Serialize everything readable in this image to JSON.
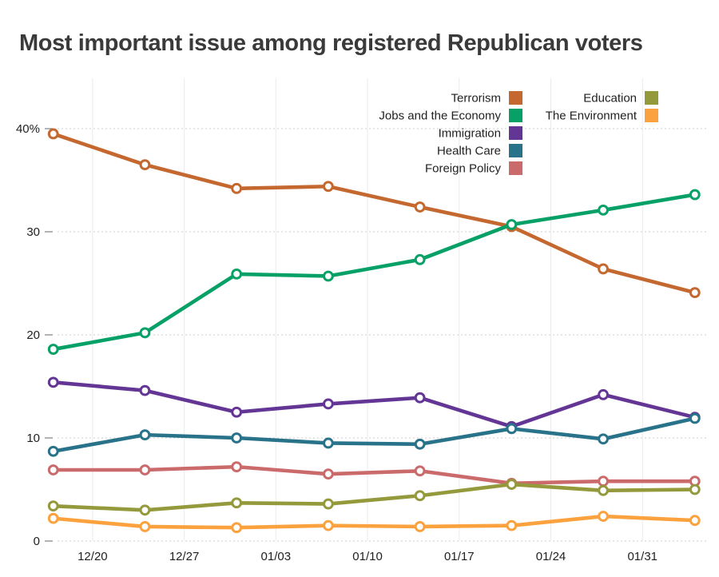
{
  "page": {
    "title": "Most important issue among registered Republican voters"
  },
  "chart_data": {
    "type": "line",
    "title": "Most important issue among registered Republican voters",
    "x_tick_labels": [
      "12/20",
      "12/27",
      "01/03",
      "01/10",
      "01/17",
      "01/24",
      "01/31"
    ],
    "x_tick_days": [
      0,
      7,
      14,
      21,
      28,
      35,
      42
    ],
    "x_days": [
      -3,
      4,
      11,
      18,
      25,
      32,
      39,
      46
    ],
    "y_ticks": [
      0,
      10,
      20,
      30,
      40
    ],
    "y_tick_labels": [
      "0",
      "10",
      "20",
      "30",
      "40%"
    ],
    "ylim": [
      0,
      44
    ],
    "grid": {
      "vertical_lines": true,
      "horizontal_dashed_lines": true
    },
    "legend_position": "top-right, two columns, labels right-aligned before color swatches",
    "series": [
      {
        "name": "Terrorism",
        "color": "#C4682F",
        "legend_col": 0,
        "legend_row": 0,
        "values": [
          39.5,
          36.5,
          34.2,
          34.4,
          32.4,
          30.5,
          26.4,
          24.1
        ]
      },
      {
        "name": "Jobs and the Economy",
        "color": "#07A168",
        "legend_col": 0,
        "legend_row": 1,
        "values": [
          18.6,
          20.2,
          25.9,
          25.7,
          27.3,
          30.7,
          32.1,
          33.6
        ]
      },
      {
        "name": "Immigration",
        "color": "#633594",
        "legend_col": 0,
        "legend_row": 2,
        "values": [
          15.4,
          14.6,
          12.5,
          13.3,
          13.9,
          11.1,
          14.2,
          12.0
        ]
      },
      {
        "name": "Health Care",
        "color": "#28728A",
        "legend_col": 0,
        "legend_row": 3,
        "values": [
          8.7,
          10.3,
          10.0,
          9.5,
          9.4,
          10.9,
          9.9,
          11.9
        ]
      },
      {
        "name": "Foreign Policy",
        "color": "#CB6A6B",
        "legend_col": 0,
        "legend_row": 4,
        "values": [
          6.9,
          6.9,
          7.2,
          6.5,
          6.8,
          5.6,
          5.8,
          5.8
        ]
      },
      {
        "name": "Education",
        "color": "#94993B",
        "legend_col": 1,
        "legend_row": 0,
        "values": [
          3.4,
          3.0,
          3.7,
          3.6,
          4.4,
          5.5,
          4.9,
          5.0
        ]
      },
      {
        "name": "The Environment",
        "color": "#FBA13E",
        "legend_col": 1,
        "legend_row": 1,
        "values": [
          2.2,
          1.4,
          1.3,
          1.5,
          1.4,
          1.5,
          2.4,
          2.0
        ]
      }
    ],
    "style_colors": {
      "title_text": "#3a3a3a",
      "axis_text": "#1f1f1f",
      "vertical_gridline": "#ebebeb",
      "dashed_gridline": "#d8d8d8",
      "tick_dash": "#8a8a8a",
      "marker_fill": "#ffffff"
    }
  }
}
